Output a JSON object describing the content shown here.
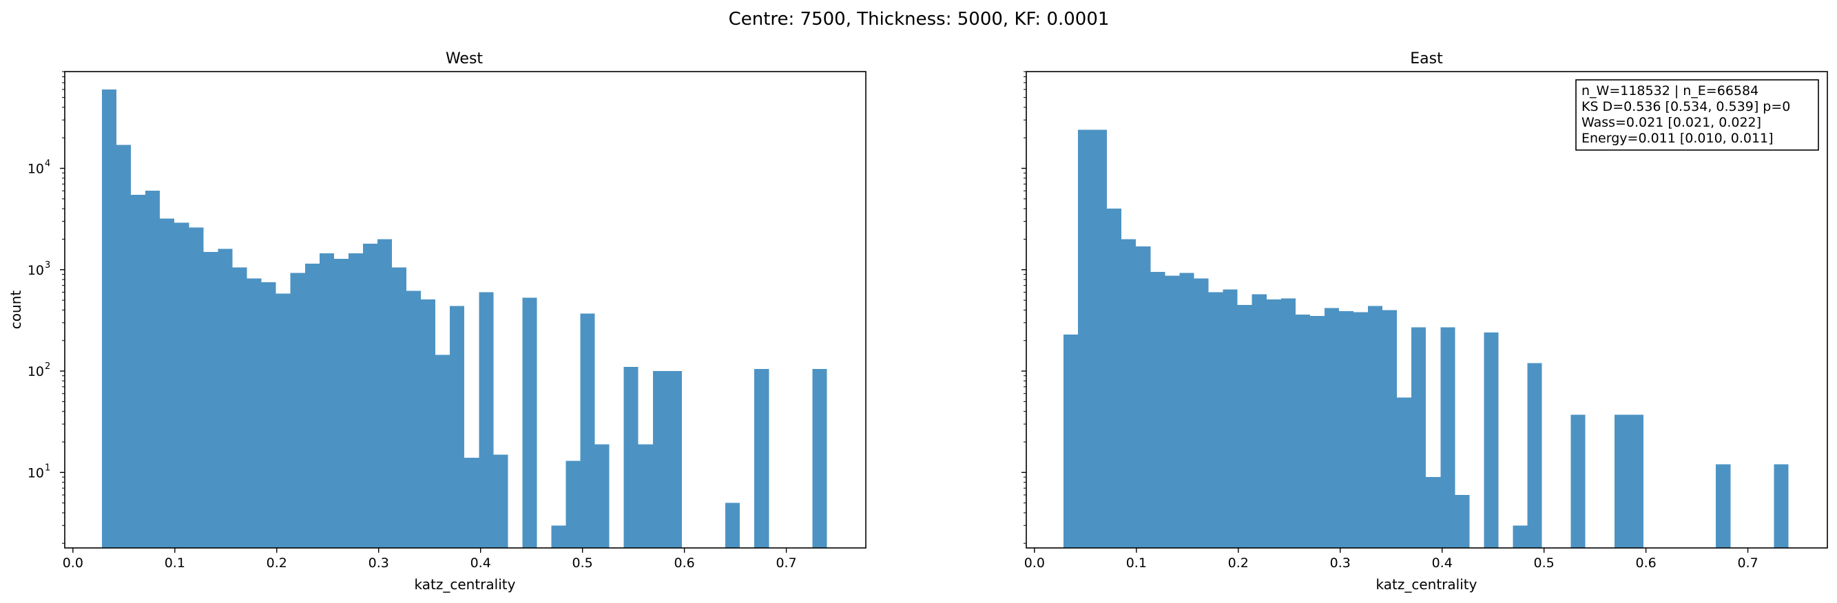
{
  "figure": {
    "suptitle": "Centre: 7500, Thickness: 5000, KF: 0.0001"
  },
  "colors": {
    "bar": "#4c93c3",
    "axes": "#000000",
    "background": "#ffffff"
  },
  "chart_data": [
    {
      "type": "bar",
      "title": "West",
      "xlabel": "katz_centrality",
      "ylabel": "count",
      "yscale": "log",
      "xlim": [
        -0.008,
        0.778
      ],
      "ylim": [
        1.8,
        90000
      ],
      "xticks": [
        0.0,
        0.1,
        0.2,
        0.3,
        0.4,
        0.5,
        0.6,
        0.7
      ],
      "xtick_labels": [
        "0.0",
        "0.1",
        "0.2",
        "0.3",
        "0.4",
        "0.5",
        "0.6",
        "0.7"
      ],
      "yticks": [
        10,
        100,
        1000,
        10000
      ],
      "ytick_labels": [
        "10",
        "10",
        "10",
        "10"
      ],
      "ytick_exponents": [
        "1",
        "2",
        "3",
        "4"
      ],
      "grid": false,
      "bin_edges": [
        0.0285,
        0.0427,
        0.057,
        0.0712,
        0.0854,
        0.0996,
        0.1139,
        0.1281,
        0.1423,
        0.1565,
        0.1708,
        0.185,
        0.1992,
        0.2134,
        0.2277,
        0.2419,
        0.2561,
        0.2703,
        0.2846,
        0.2988,
        0.313,
        0.3272,
        0.3415,
        0.3557,
        0.3699,
        0.3841,
        0.3984,
        0.4126,
        0.4268,
        0.441,
        0.4553,
        0.4695,
        0.4837,
        0.4979,
        0.5122,
        0.5264,
        0.5406,
        0.5548,
        0.5691,
        0.5833,
        0.5975,
        0.6117,
        0.626,
        0.6402,
        0.6544,
        0.6686,
        0.6829,
        0.6971,
        0.7113,
        0.7255,
        0.7398
      ],
      "counts": [
        60000,
        17000,
        5500,
        6000,
        3200,
        2900,
        2600,
        1500,
        1600,
        1050,
        820,
        750,
        580,
        930,
        1150,
        1450,
        1280,
        1450,
        1800,
        2000,
        1050,
        620,
        510,
        145,
        440,
        14,
        600,
        15,
        0,
        530,
        0,
        3,
        13,
        370,
        19,
        0,
        110,
        19,
        100,
        100,
        0,
        0,
        0,
        5,
        0,
        105,
        0,
        0,
        0,
        105
      ]
    },
    {
      "type": "bar",
      "title": "East",
      "xlabel": "katz_centrality",
      "ylabel": "",
      "yscale": "log",
      "xlim": [
        -0.008,
        0.778
      ],
      "ylim": [
        1.8,
        90000
      ],
      "xticks": [
        0.0,
        0.1,
        0.2,
        0.3,
        0.4,
        0.5,
        0.6,
        0.7
      ],
      "xtick_labels": [
        "0.0",
        "0.1",
        "0.2",
        "0.3",
        "0.4",
        "0.5",
        "0.6",
        "0.7"
      ],
      "yticks": [
        10,
        100,
        1000,
        10000
      ],
      "grid": false,
      "bin_edges": [
        0.0285,
        0.0427,
        0.057,
        0.0712,
        0.0854,
        0.0996,
        0.1139,
        0.1281,
        0.1423,
        0.1565,
        0.1708,
        0.185,
        0.1992,
        0.2134,
        0.2277,
        0.2419,
        0.2561,
        0.2703,
        0.2846,
        0.2988,
        0.313,
        0.3272,
        0.3415,
        0.3557,
        0.3699,
        0.3841,
        0.3984,
        0.4126,
        0.4268,
        0.441,
        0.4553,
        0.4695,
        0.4837,
        0.4979,
        0.5122,
        0.5264,
        0.5406,
        0.5548,
        0.5691,
        0.5833,
        0.5975,
        0.6117,
        0.626,
        0.6402,
        0.6544,
        0.6686,
        0.6829,
        0.6971,
        0.7113,
        0.7255,
        0.7398
      ],
      "counts": [
        230,
        24000,
        24000,
        4000,
        2000,
        1700,
        950,
        870,
        930,
        820,
        600,
        640,
        450,
        570,
        510,
        520,
        360,
        350,
        420,
        390,
        380,
        440,
        400,
        55,
        270,
        9,
        270,
        6,
        0,
        240,
        0,
        3,
        120,
        0,
        0,
        37,
        0,
        0,
        37,
        37,
        0,
        0,
        0,
        0,
        0,
        12,
        0,
        0,
        0,
        12
      ],
      "annotation": [
        "n_W=118532 | n_E=66584",
        "KS D=0.536 [0.534, 0.539]  p=0",
        "Wass=0.021 [0.021, 0.022]",
        "Energy=0.011 [0.010, 0.011]"
      ],
      "annotation_position": "top-right"
    }
  ]
}
